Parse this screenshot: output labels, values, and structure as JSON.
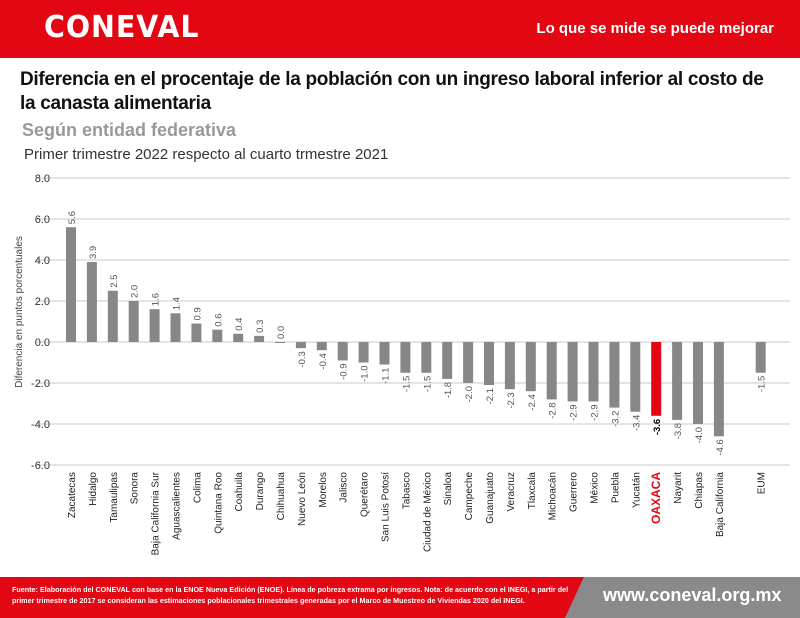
{
  "header": {
    "logo": "CONEVAL",
    "slogan": "Lo que se mide se puede mejorar",
    "brand_color": "#e30613"
  },
  "title": "Diferencia en el procentaje de la población con un ingreso laboral inferior al costo de la canasta alimentaria",
  "subtitle": "Según entidad federativa",
  "subtitle2": "Primer trimestre 2022 respecto al cuarto trmestre 2021",
  "footer": {
    "source": "Fuente: Elaboración del CONEVAL con base en la ENOE Nueva Edición (ENOE). Línea de pobreza extrama por ingresos. Nota: de acuerdo con el INEGI, a partir del primer trimestre de 2017 se consideran las estimaciones poblacionales trimestrales generadas por el Marco de Muestreo de Viviendas 2020 del INEGI.",
    "url": "www.coneval.org.mx"
  },
  "chart_data": {
    "type": "bar",
    "ylabel": "Diferencia en puntos porcentuales",
    "ylim": [
      -6,
      8
    ],
    "yticks": [
      "8.0",
      "6.0",
      "4.0",
      "2.0",
      "0.0",
      "-2.0",
      "-4.0",
      "-6.0"
    ],
    "grid": true,
    "bar_color": "#878787",
    "highlight_color": "#e30613",
    "highlight": "OAXACA",
    "categories": [
      "Zacatecas",
      "Hidalgo",
      "Tamaulipas",
      "Sonora",
      "Baja California Sur",
      "Aguascalientes",
      "Colima",
      "Quintana Roo",
      "Coahuila",
      "Durango",
      "Chihuahua",
      "Nuevo León",
      "Morelos",
      "Jalisco",
      "Querétaro",
      "San Luis Potosí",
      "Tabasco",
      "Ciudad de México",
      "Sinaloa",
      "Campeche",
      "Guanajuato",
      "Veracruz",
      "Tlaxcala",
      "Michoacán",
      "Guerrero",
      "México",
      "Puebla",
      "Yucatán",
      "OAXACA",
      "Nayarit",
      "Chiapas",
      "Baja California",
      "EUM"
    ],
    "values": [
      5.6,
      3.9,
      2.5,
      2.0,
      1.6,
      1.4,
      0.9,
      0.6,
      0.4,
      0.3,
      0.0,
      -0.3,
      -0.4,
      -0.9,
      -1.0,
      -1.1,
      -1.5,
      -1.5,
      -1.8,
      -2.0,
      -2.1,
      -2.3,
      -2.4,
      -2.8,
      -2.9,
      -2.9,
      -3.2,
      -3.4,
      -3.6,
      -3.8,
      -4.0,
      -4.6,
      -1.5
    ],
    "value_labels": [
      "5.6",
      "3.9",
      "2.5",
      "2.0",
      "1.6",
      "1.4",
      "0.9",
      "0.6",
      "0.4",
      "0.3",
      "0.0",
      "-0.3",
      "-0.4",
      "-0.9",
      "-1.0",
      "-1.1",
      "-1.5",
      "-1.5",
      "-1.8",
      "-2.0",
      "-2.1",
      "-2.3",
      "-2.4",
      "-2.8",
      "-2.9",
      "-2.9",
      "-3.2",
      "-3.4",
      "-3.6",
      "-3.8",
      "-4.0",
      "-4.6",
      "-1.5"
    ]
  }
}
